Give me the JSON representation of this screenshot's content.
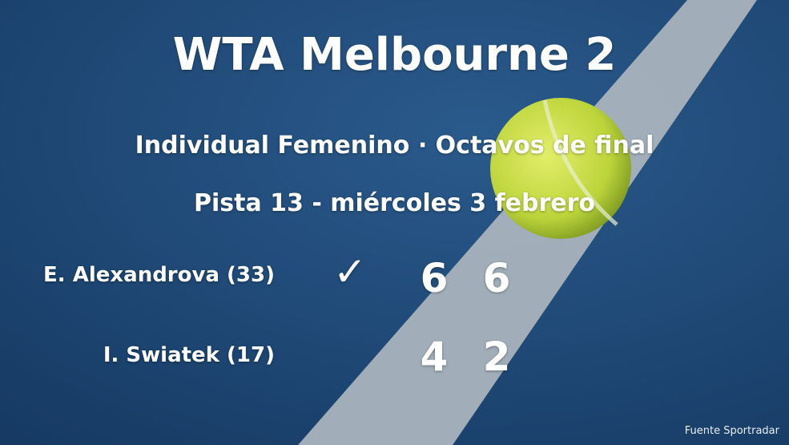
{
  "title": "WTA Melbourne 2",
  "subtitle": "Individual Femenino · Octavos de final",
  "venue_date": "Pista 13 - miércoles 3 febrero",
  "players": [
    {
      "name": "E. Alexandrova (33)",
      "winner": true,
      "sets": [
        "6",
        "6"
      ]
    },
    {
      "name": "I. Swiatek (17)",
      "winner": false,
      "sets": [
        "4",
        "2"
      ]
    }
  ],
  "winner_icon": "checkmark-icon",
  "source": "Fuente Sportradar",
  "colors": {
    "court": "#1f4a78",
    "line": "#a9b3bd",
    "ball": "#c9dc3a"
  }
}
